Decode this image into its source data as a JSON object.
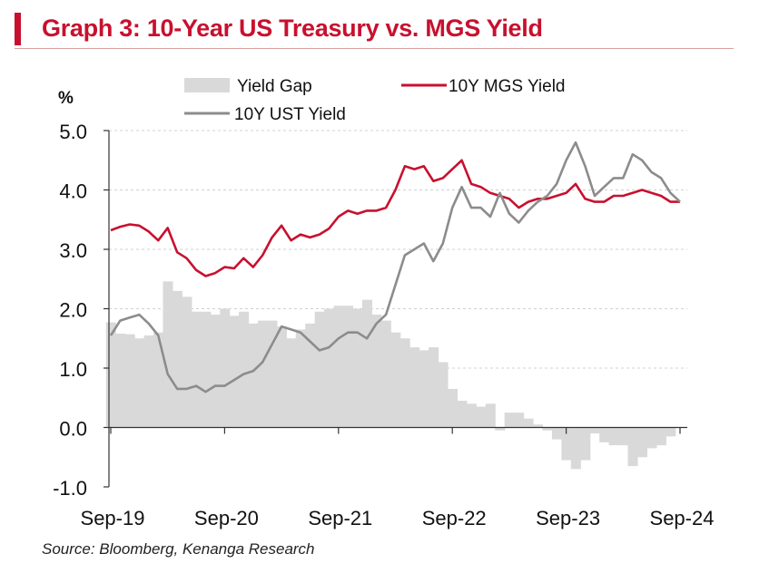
{
  "title": "Graph 3: 10-Year US Treasury vs. MGS Yield",
  "source": "Source:  Bloomberg, Kenanga Research",
  "colors": {
    "brand": "#C8102E",
    "gap": "#d9d9d9",
    "ust": "#8c8c8c",
    "mgs": "#C8102E"
  },
  "chart_data": {
    "type": "line",
    "ylabel": "%",
    "ylim": [
      -1.0,
      5.0
    ],
    "yticks": [
      "5.0",
      "4.0",
      "3.0",
      "2.0",
      "1.0",
      "0.0",
      "-1.0"
    ],
    "xticks": [
      "Sep-19",
      "Sep-20",
      "Sep-21",
      "Sep-22",
      "Sep-23",
      "Sep-24"
    ],
    "legend": [
      "Yield Gap",
      "10Y MGS Yield",
      "10Y UST Yield"
    ],
    "x": [
      "Sep-19",
      "Oct-19",
      "Nov-19",
      "Dec-19",
      "Jan-20",
      "Feb-20",
      "Mar-20",
      "Apr-20",
      "May-20",
      "Jun-20",
      "Jul-20",
      "Aug-20",
      "Sep-20",
      "Oct-20",
      "Nov-20",
      "Dec-20",
      "Jan-21",
      "Feb-21",
      "Mar-21",
      "Apr-21",
      "May-21",
      "Jun-21",
      "Jul-21",
      "Aug-21",
      "Sep-21",
      "Oct-21",
      "Nov-21",
      "Dec-21",
      "Jan-22",
      "Feb-22",
      "Mar-22",
      "Apr-22",
      "May-22",
      "Jun-22",
      "Jul-22",
      "Aug-22",
      "Sep-22",
      "Oct-22",
      "Nov-22",
      "Dec-22",
      "Jan-23",
      "Feb-23",
      "Mar-23",
      "Apr-23",
      "May-23",
      "Jun-23",
      "Jul-23",
      "Aug-23",
      "Sep-23",
      "Oct-23",
      "Nov-23",
      "Dec-23",
      "Jan-24",
      "Feb-24",
      "Mar-24",
      "Apr-24",
      "May-24",
      "Jun-24",
      "Jul-24",
      "Aug-24",
      "Sep-24"
    ],
    "series": [
      {
        "name": "10Y MGS Yield",
        "type": "line",
        "values": [
          3.32,
          3.38,
          3.42,
          3.4,
          3.3,
          3.15,
          3.36,
          2.95,
          2.85,
          2.65,
          2.55,
          2.6,
          2.7,
          2.68,
          2.85,
          2.7,
          2.9,
          3.2,
          3.4,
          3.15,
          3.25,
          3.2,
          3.25,
          3.35,
          3.55,
          3.65,
          3.6,
          3.65,
          3.65,
          3.7,
          4.0,
          4.4,
          4.35,
          4.4,
          4.15,
          4.2,
          4.35,
          4.5,
          4.1,
          4.05,
          3.95,
          3.9,
          3.85,
          3.7,
          3.8,
          3.85,
          3.85,
          3.9,
          3.95,
          4.1,
          3.85,
          3.8,
          3.8,
          3.9,
          3.9,
          3.95,
          4.0,
          3.95,
          3.9,
          3.8,
          3.8
        ]
      },
      {
        "name": "10Y UST Yield",
        "type": "line",
        "values": [
          1.55,
          1.8,
          1.85,
          1.9,
          1.75,
          1.55,
          0.9,
          0.65,
          0.65,
          0.7,
          0.6,
          0.7,
          0.7,
          0.8,
          0.9,
          0.95,
          1.1,
          1.4,
          1.7,
          1.65,
          1.6,
          1.45,
          1.3,
          1.35,
          1.5,
          1.6,
          1.6,
          1.5,
          1.75,
          1.9,
          2.4,
          2.9,
          3.0,
          3.1,
          2.8,
          3.1,
          3.7,
          4.05,
          3.7,
          3.7,
          3.55,
          3.95,
          3.6,
          3.45,
          3.65,
          3.8,
          3.9,
          4.1,
          4.5,
          4.8,
          4.4,
          3.9,
          4.05,
          4.2,
          4.2,
          4.6,
          4.5,
          4.3,
          4.2,
          3.95,
          3.8
        ]
      },
      {
        "name": "Yield Gap",
        "type": "area",
        "values": [
          1.77,
          1.58,
          1.57,
          1.5,
          1.55,
          1.6,
          2.46,
          2.3,
          2.2,
          1.95,
          1.95,
          1.9,
          2.0,
          1.88,
          1.95,
          1.75,
          1.8,
          1.8,
          1.7,
          1.5,
          1.65,
          1.75,
          1.95,
          2.0,
          2.05,
          2.05,
          2.0,
          2.15,
          1.9,
          1.8,
          1.6,
          1.5,
          1.35,
          1.3,
          1.35,
          1.1,
          0.65,
          0.45,
          0.4,
          0.35,
          0.4,
          -0.05,
          0.25,
          0.25,
          0.15,
          0.05,
          -0.05,
          -0.2,
          -0.55,
          -0.7,
          -0.55,
          -0.1,
          -0.25,
          -0.3,
          -0.3,
          -0.65,
          -0.5,
          -0.35,
          -0.3,
          -0.15,
          0.0
        ]
      }
    ]
  }
}
